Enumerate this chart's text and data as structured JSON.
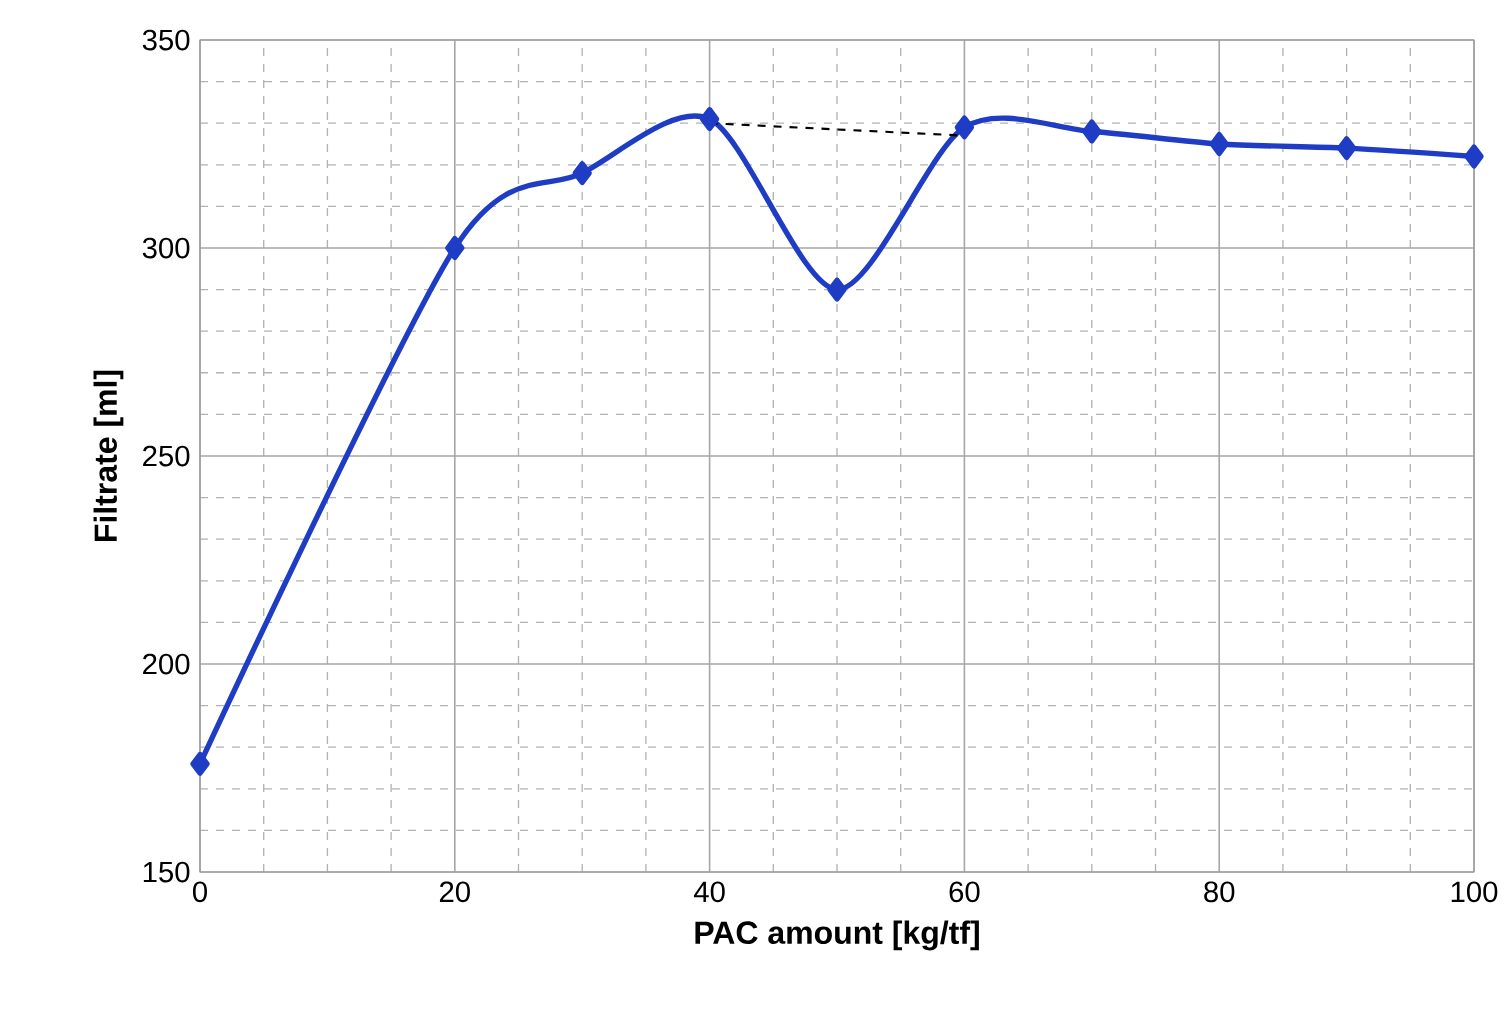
{
  "chart_data": {
    "type": "line",
    "xlabel": "PAC amount [kg/tf]",
    "ylabel": "Filtrate [ml]",
    "xlim": [
      0,
      100
    ],
    "xticks": [
      0,
      20,
      40,
      60,
      80,
      100
    ],
    "ylim": [
      150,
      350
    ],
    "yticks": [
      150,
      200,
      250,
      300,
      350
    ],
    "grid": true,
    "marker": "diamond",
    "line_style": "solid",
    "series": [
      {
        "x": [
          0,
          20,
          30,
          40,
          50,
          60,
          70,
          80,
          90,
          100
        ],
        "values": [
          176,
          300,
          318,
          331,
          290,
          329,
          328,
          325,
          324,
          322
        ],
        "color": "#1f3dc4"
      },
      {
        "x": [
          40,
          60
        ],
        "values": [
          330,
          327
        ],
        "color": "#000000",
        "line_style": "dashed",
        "marker": "none"
      }
    ]
  }
}
